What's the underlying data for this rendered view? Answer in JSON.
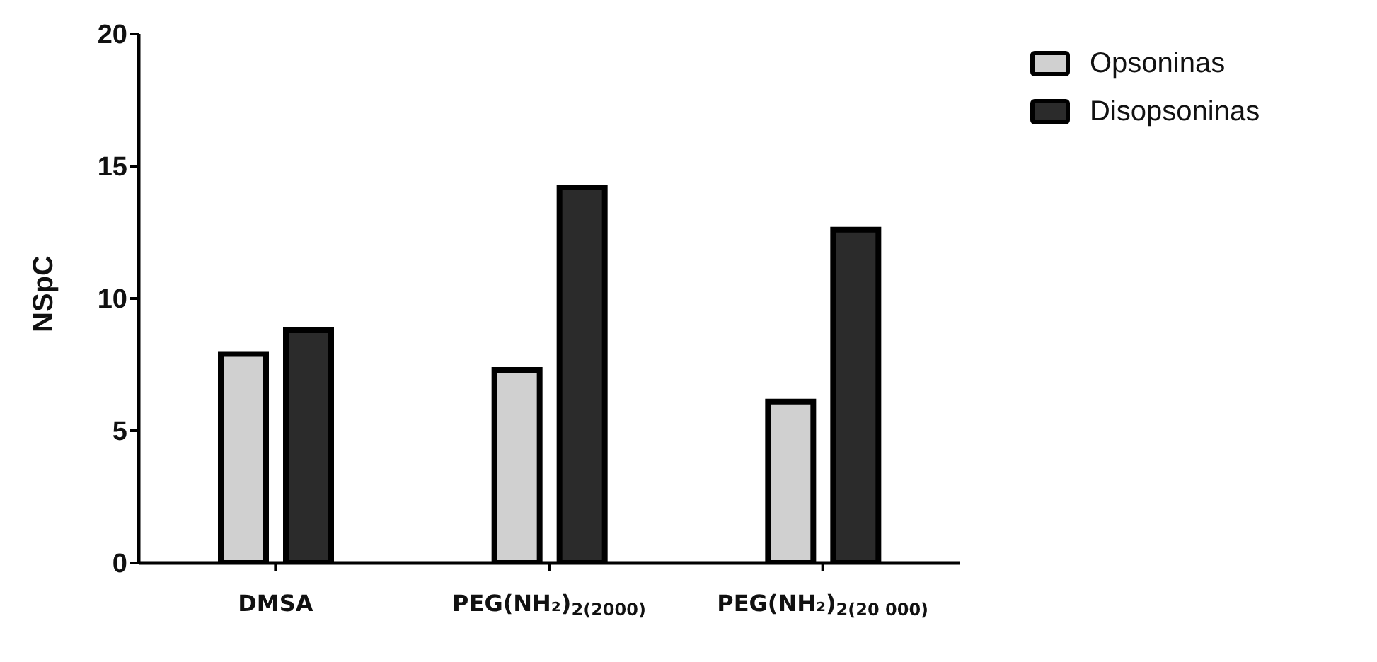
{
  "chart_data": {
    "type": "bar",
    "ylabel": "NSpC",
    "categories": [
      "DMSA",
      "PEG(NH₂)$_{2(2000)}$",
      "PEG(NH₂)$_{2(20 000)}$"
    ],
    "series": [
      {
        "name": "Opsoninas",
        "color": "#d0d0d0",
        "values": [
          7.9,
          7.3,
          6.1
        ]
      },
      {
        "name": "Disopsoninas",
        "color": "#2b2b2b",
        "values": [
          8.8,
          14.2,
          12.6
        ]
      }
    ],
    "ylim": [
      0,
      20
    ],
    "yticks": [
      0,
      5,
      10,
      15,
      20
    ],
    "grid": false,
    "legend": "top right"
  }
}
